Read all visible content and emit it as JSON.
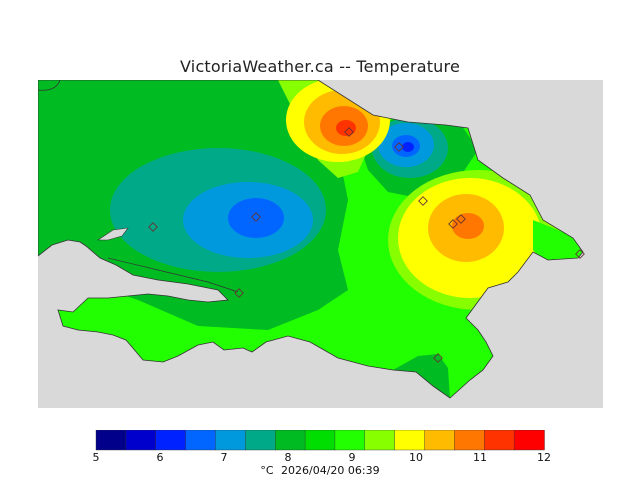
{
  "title": "VictoriaWeather.ca -- Temperature",
  "legend": {
    "unit": "°C",
    "timestamp": "2026/04/20 06:39",
    "ticks": [
      "5",
      "6",
      "7",
      "8",
      "9",
      "10",
      "11",
      "12"
    ],
    "min": 5,
    "max": 12,
    "step": 0.5,
    "colors": [
      "#00008b",
      "#0000cd",
      "#0022ff",
      "#0066ff",
      "#0099dd",
      "#00aa88",
      "#00bb22",
      "#00dd00",
      "#22ff00",
      "#88ff00",
      "#ffff00",
      "#ffbb00",
      "#ff7700",
      "#ff3300",
      "#ff0000"
    ]
  },
  "map": {
    "land_color": "#22ee00",
    "water_color": "#d9d9d9",
    "hotspots": [
      {
        "name": "north-warm-center",
        "value": 11.5
      },
      {
        "name": "east-warm-center",
        "value": 10.9
      },
      {
        "name": "central-cool-center",
        "value": 6.6
      },
      {
        "name": "northeast-cool-center",
        "value": 6.8
      }
    ],
    "stations": 10
  }
}
